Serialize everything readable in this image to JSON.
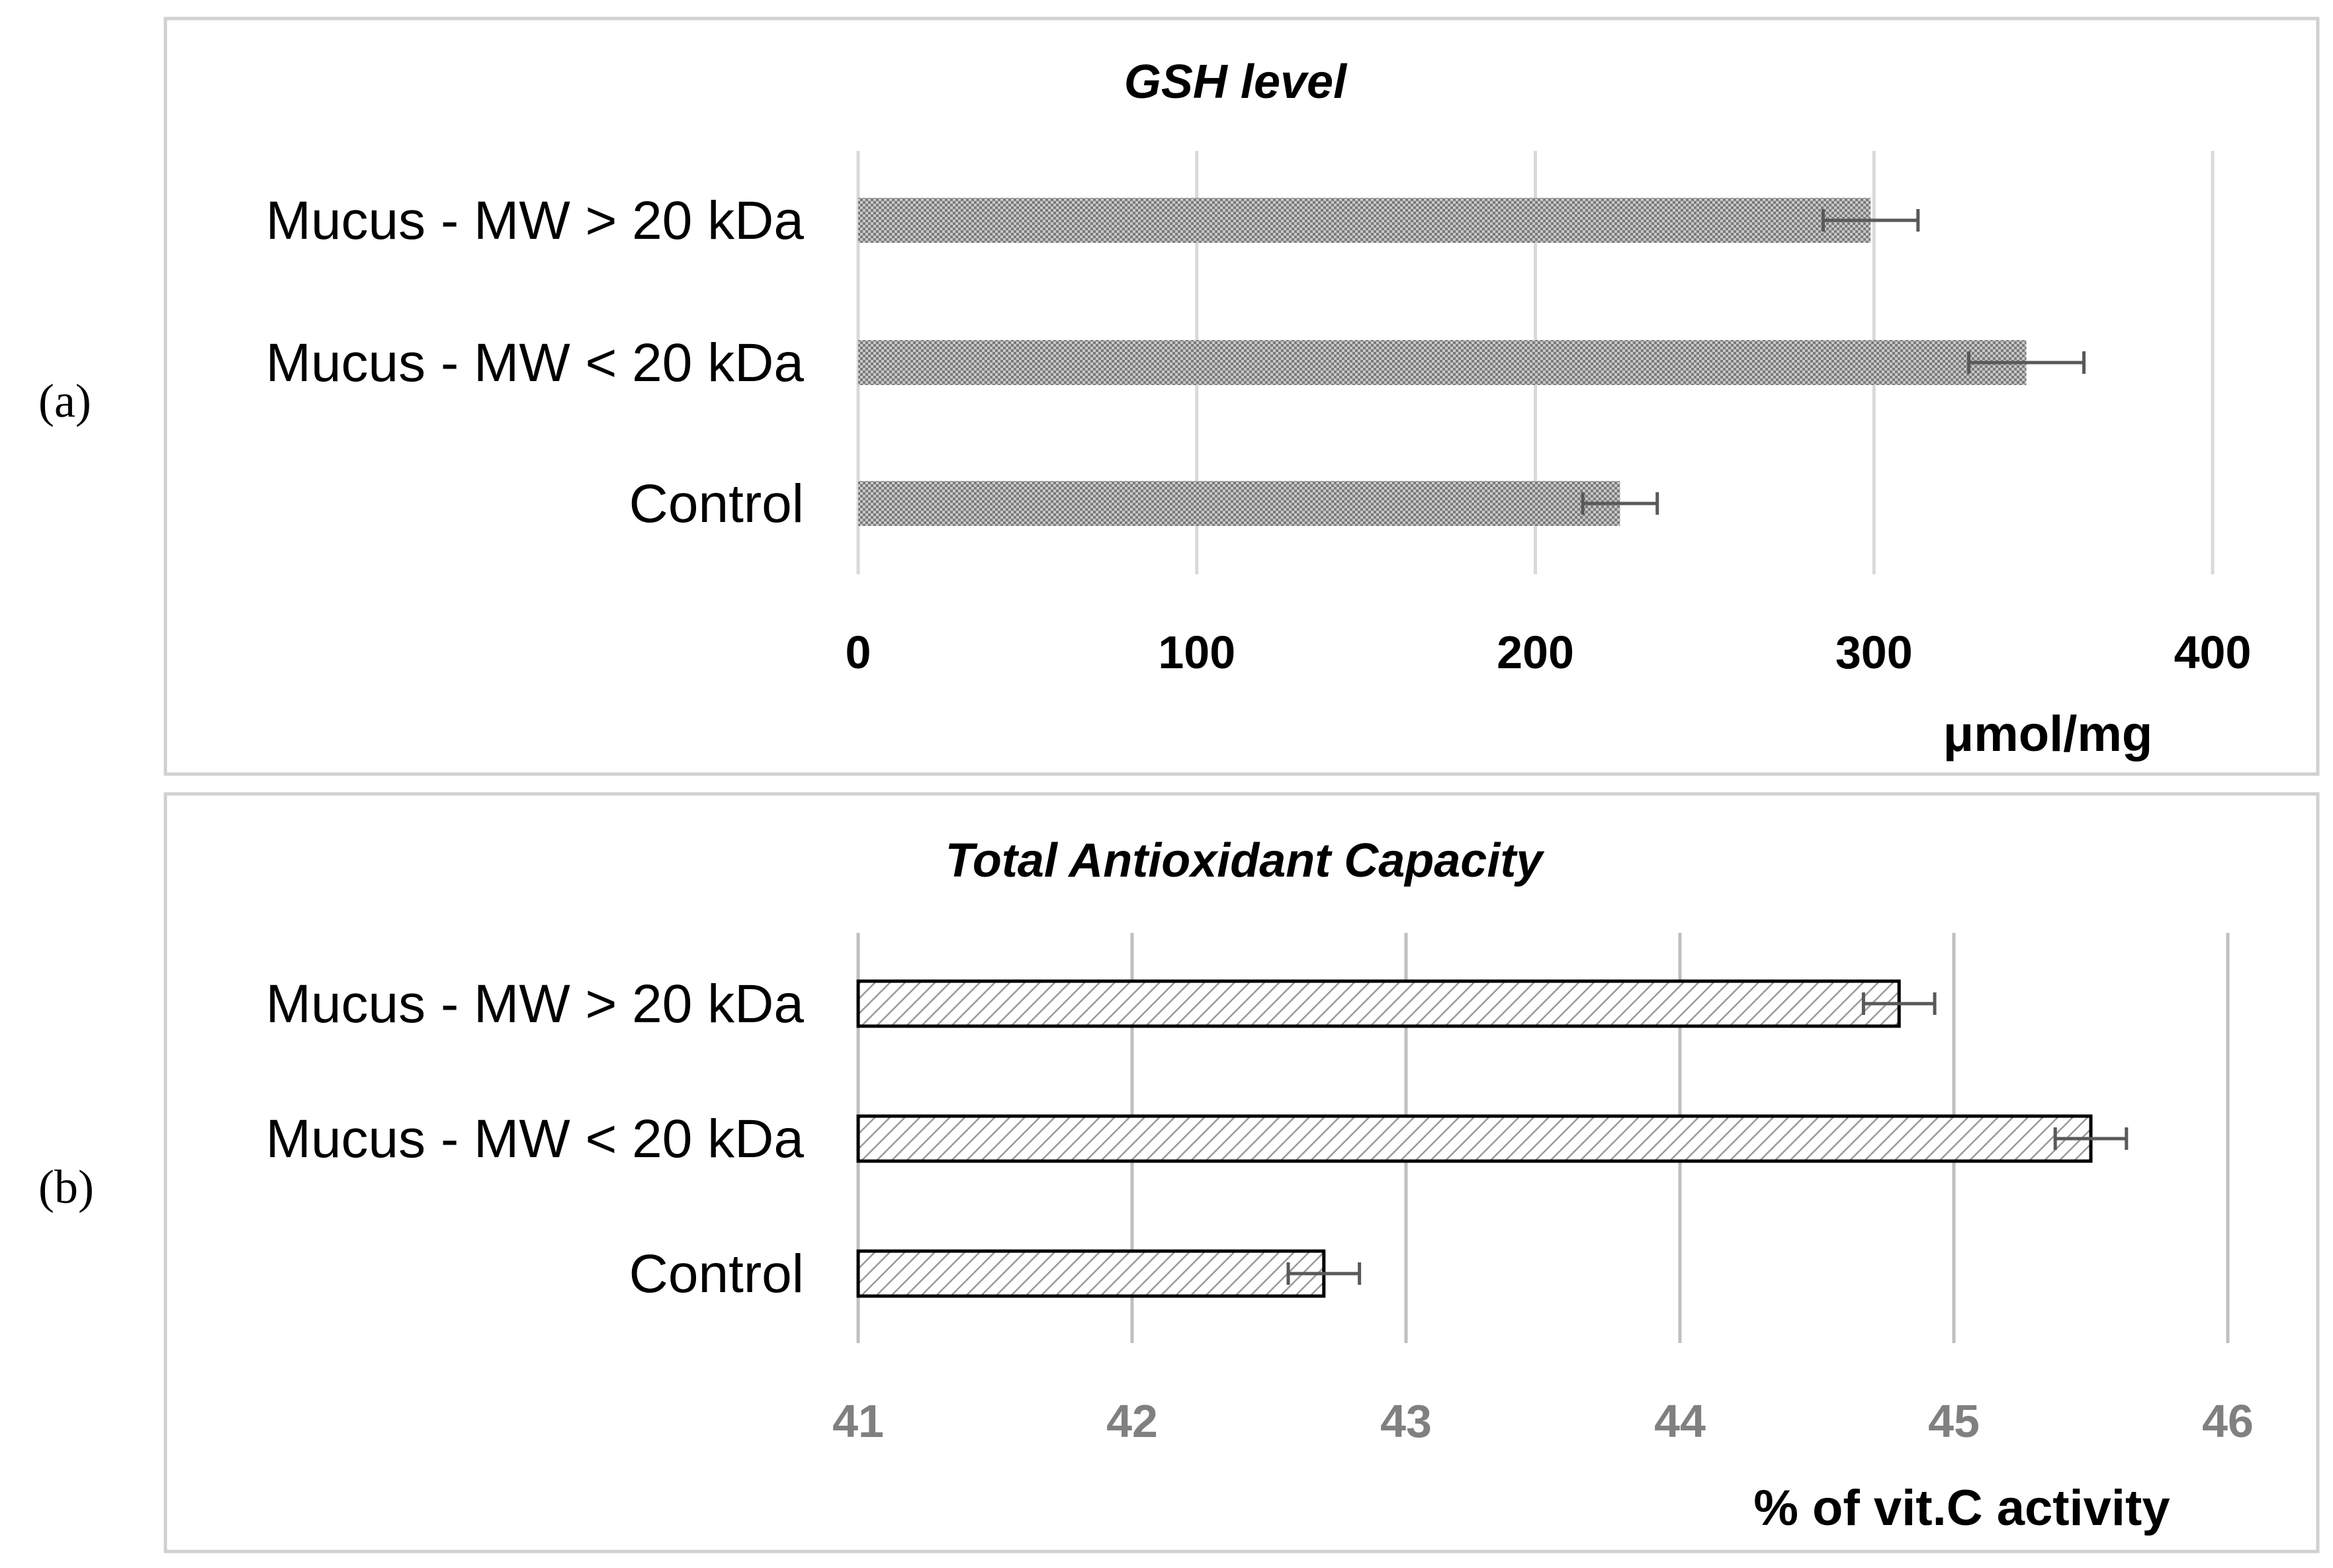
{
  "chart_data": [
    {
      "type": "bar",
      "orientation": "horizontal",
      "panel_label": "(a)",
      "title": "GSH level",
      "categories": [
        "Mucus - MW > 20 kDa",
        "Mucus - MW < 20 kDa",
        "Control"
      ],
      "values": [
        299,
        345,
        225
      ],
      "errors": [
        14,
        17,
        11
      ],
      "xlim": [
        0,
        400
      ],
      "xticks": [
        "0",
        "100",
        "200",
        "300",
        "400"
      ],
      "xlabel": "μmol/mg",
      "pattern": "dense-dots",
      "grid": true
    },
    {
      "type": "bar",
      "orientation": "horizontal",
      "panel_label": "(b)",
      "title": "Total Antioxidant Capacity",
      "categories": [
        "Mucus - MW > 20 kDa",
        "Mucus - MW < 20 kDa",
        "Control"
      ],
      "values": [
        44.8,
        45.5,
        42.7
      ],
      "errors": [
        0.13,
        0.13,
        0.13
      ],
      "xlim": [
        41,
        46
      ],
      "xticks": [
        "41",
        "42",
        "43",
        "44",
        "45",
        "46"
      ],
      "xlabel": "% of vit.C activity",
      "pattern": "diagonal-hatch",
      "grid": true
    }
  ]
}
